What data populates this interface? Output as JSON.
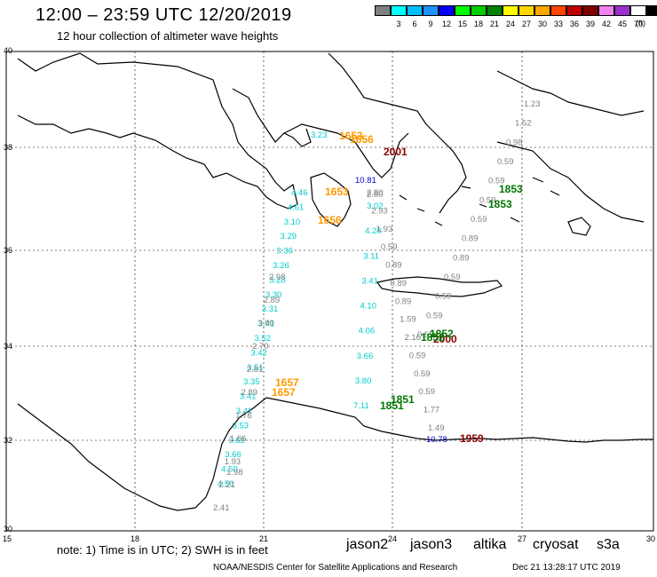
{
  "title": "12:00 – 23:59 UTC 12/20/2019",
  "subtitle": "12 hour collection of altimeter wave heights",
  "scale": {
    "unit": "(ft)",
    "boxes": [
      {
        "color": "#808080",
        "label": ""
      },
      {
        "color": "#00ffff",
        "label": "3"
      },
      {
        "color": "#00bfff",
        "label": "6"
      },
      {
        "color": "#1e90ff",
        "label": "9"
      },
      {
        "color": "#0000ff",
        "label": "12"
      },
      {
        "color": "#00ff00",
        "label": "15"
      },
      {
        "color": "#00cc00",
        "label": "18"
      },
      {
        "color": "#008000",
        "label": "21"
      },
      {
        "color": "#ffff00",
        "label": "24"
      },
      {
        "color": "#ffd700",
        "label": "27"
      },
      {
        "color": "#ffa500",
        "label": "30"
      },
      {
        "color": "#ff4500",
        "label": "33"
      },
      {
        "color": "#c00000",
        "label": "36"
      },
      {
        "color": "#800000",
        "label": "39"
      },
      {
        "color": "#ee82ee",
        "label": "42"
      },
      {
        "color": "#9932cc",
        "label": "45"
      },
      {
        "color": "#ffffff",
        "label": "70"
      },
      {
        "color": "#000000",
        "label": ""
      }
    ]
  },
  "axes": {
    "lat_labels": [
      "40",
      "38",
      "36",
      "34",
      "32",
      "30"
    ],
    "lon_labels": [
      "15",
      "18",
      "21",
      "24",
      "27",
      "30"
    ]
  },
  "note": "note:  1) Time is in UTC;  2) SWH is in feet",
  "satellites": [
    {
      "name": "jason2",
      "color": "#0000ff"
    },
    {
      "name": "jason3",
      "color": "#008000"
    },
    {
      "name": "altika",
      "color": "#ffa500"
    },
    {
      "name": "cryosat",
      "color": "#cc0000"
    },
    {
      "name": "s3a",
      "color": "#800000"
    }
  ],
  "footer_left": "NOAA/NESDIS Center for Satellite Applications and Research",
  "footer_right": "Dec 21 13:28:17 UTC 2019",
  "colors": {
    "cyan": "#00cccc",
    "gray": "#808080",
    "jason2": "#0000cc",
    "jason3": "#007700",
    "altika": "#ff9900",
    "s3a": "#880000"
  },
  "tracks": [
    {
      "name": "western-track",
      "color": "cyan",
      "labels": [
        "4.46",
        "4.61",
        "3.10",
        "3.29",
        "3.36",
        "3.26",
        "3.28",
        "3.30",
        "3.31",
        "3.41",
        "3.52",
        "3.42",
        "3.51",
        "3.35",
        "3.41",
        "3.41",
        "3.53",
        "3.62",
        "3.66",
        "4.50",
        "4.50"
      ]
    },
    {
      "name": "western-track-gray",
      "color": "gray",
      "labels": [
        "2.98",
        "2.89",
        "3.80",
        "2.70",
        "2.81",
        "2.89",
        "1.76",
        "1.66",
        "1.93",
        "2.21",
        "2.41"
      ]
    },
    {
      "name": "central-track-cyan",
      "color": "cyan",
      "labels": [
        "3.02",
        "4.28",
        "3.11",
        "3.41",
        "4.10",
        "4.06",
        "3.66",
        "3.80",
        "7.11"
      ]
    },
    {
      "name": "central-track-gray",
      "color": "gray",
      "labels": [
        "2.80",
        "2.93",
        "1.93",
        "0.59",
        "0.89",
        "0.89",
        "0.89",
        "1.59",
        "2.16",
        "0.59",
        "0.59",
        "0.59",
        "1.77",
        "1.49"
      ]
    },
    {
      "name": "eastern-track-gray",
      "color": "gray",
      "labels": [
        "1.23",
        "1.52",
        "0.98",
        "0.59",
        "0.59",
        "0.59",
        "0.59",
        "0.89",
        "0.89",
        "0.59",
        "0.59",
        "0.59",
        "0.59"
      ]
    }
  ],
  "time_labels": [
    {
      "text": "1653",
      "color": "altika"
    },
    {
      "text": "1656",
      "color": "altika"
    },
    {
      "text": "1653",
      "color": "altika"
    },
    {
      "text": "1656",
      "color": "altika"
    },
    {
      "text": "1657",
      "color": "altika"
    },
    {
      "text": "1657",
      "color": "altika"
    },
    {
      "text": "2001",
      "color": "s3a"
    },
    {
      "text": "2000",
      "color": "s3a"
    },
    {
      "text": "1959",
      "color": "s3a"
    },
    {
      "text": "1853",
      "color": "jason3"
    },
    {
      "text": "1853",
      "color": "jason3"
    },
    {
      "text": "1852",
      "color": "jason3"
    },
    {
      "text": "1852",
      "color": "jason3"
    },
    {
      "text": "1851",
      "color": "jason3"
    },
    {
      "text": "1851",
      "color": "jason3"
    }
  ],
  "extra_labels": [
    {
      "text": "10.78",
      "color": "jason2"
    },
    {
      "text": "10.81",
      "color": "jason2"
    },
    {
      "text": "2.80",
      "color": "gray"
    },
    {
      "text": "3.23",
      "color": "cyan"
    },
    {
      "text": "1.98",
      "color": "gray"
    }
  ]
}
